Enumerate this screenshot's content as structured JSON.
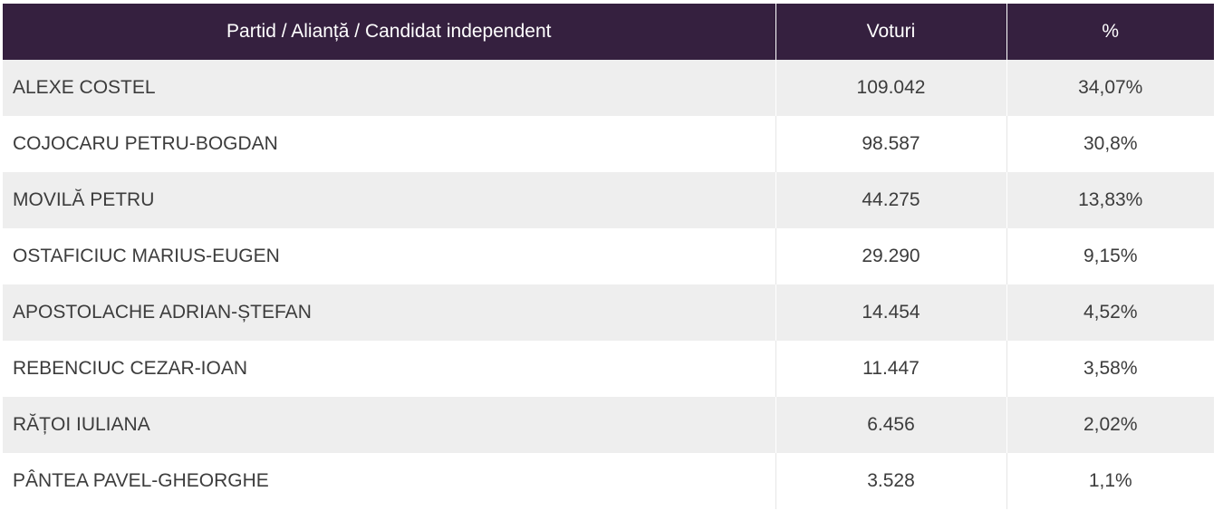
{
  "table": {
    "headers": {
      "party": "Partid / Alianță / Candidat independent",
      "votes": "Voturi",
      "percent": "%"
    },
    "rows": [
      {
        "name": "ALEXE COSTEL",
        "votes": "109.042",
        "percent": "34,07%"
      },
      {
        "name": "COJOCARU PETRU-BOGDAN",
        "votes": "98.587",
        "percent": "30,8%"
      },
      {
        "name": "MOVILĂ PETRU",
        "votes": "44.275",
        "percent": "13,83%"
      },
      {
        "name": "OSTAFICIUC MARIUS-EUGEN",
        "votes": "29.290",
        "percent": "9,15%"
      },
      {
        "name": "APOSTOLACHE ADRIAN-ȘTEFAN",
        "votes": "14.454",
        "percent": "4,52%"
      },
      {
        "name": "REBENCIUC CEZAR-IOAN",
        "votes": "11.447",
        "percent": "3,58%"
      },
      {
        "name": "RĂȚOI IULIANA",
        "votes": "6.456",
        "percent": "2,02%"
      },
      {
        "name": "PÂNTEA PAVEL-GHEORGHE",
        "votes": "3.528",
        "percent": "1,1%"
      }
    ]
  },
  "colors": {
    "header_bg": "#35203f",
    "header_text": "#ffffff",
    "row_alt_bg": "#eeeeee",
    "row_bg": "#ffffff",
    "body_text": "#3c3c3c"
  }
}
